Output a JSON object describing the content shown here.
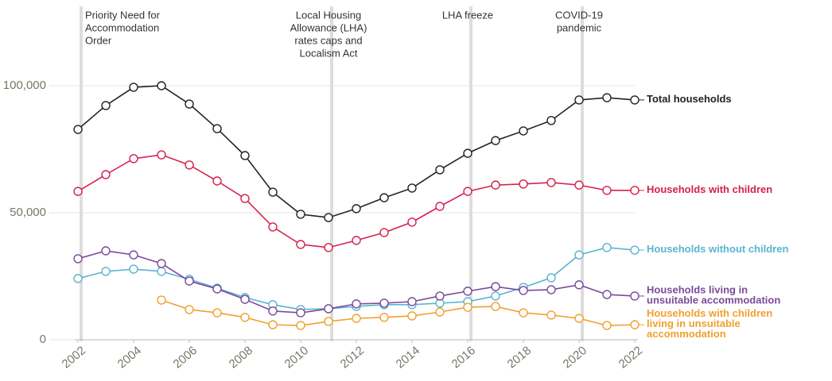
{
  "chart_data": {
    "type": "line",
    "x": [
      2002,
      2003,
      2004,
      2005,
      2006,
      2007,
      2008,
      2009,
      2010,
      2011,
      2012,
      2013,
      2014,
      2015,
      2016,
      2017,
      2018,
      2019,
      2020,
      2021,
      2022
    ],
    "xlim": [
      2002,
      2022
    ],
    "xticks": [
      2002,
      2004,
      2006,
      2008,
      2010,
      2012,
      2014,
      2016,
      2018,
      2020,
      2022
    ],
    "ylim": [
      0,
      130000
    ],
    "yticks": [
      0,
      {
        "value": 50000,
        "label": "50,000"
      },
      {
        "value": 100000,
        "label": "100,000"
      }
    ],
    "grid": true,
    "annotations": [
      {
        "x": 2002,
        "text": [
          "Priority Need for",
          "Accommodation",
          "Order"
        ]
      },
      {
        "x": 2011,
        "text": [
          "Local Housing",
          "Allowance (LHA)",
          "rates caps and",
          "Localism Act"
        ]
      },
      {
        "x": 2016,
        "text": [
          "LHA freeze"
        ]
      },
      {
        "x": 2020,
        "text": [
          "COVID-19",
          "pandemic"
        ]
      }
    ],
    "series": [
      {
        "name": "Total households",
        "color": "#222222",
        "values": [
          82800,
          92200,
          99400,
          100000,
          92800,
          83100,
          72500,
          58100,
          49400,
          48100,
          51600,
          55900,
          59700,
          66900,
          73400,
          78400,
          82200,
          86300,
          94400,
          95300,
          94400
        ]
      },
      {
        "name": "Households with children",
        "color": "#d6204e",
        "values": [
          58400,
          65000,
          71300,
          72800,
          68800,
          62500,
          55600,
          44400,
          37500,
          36300,
          39100,
          42200,
          46300,
          52500,
          58400,
          60900,
          61300,
          61900,
          60900,
          58800,
          58800
        ]
      },
      {
        "name": "Households without children",
        "color": "#5ab4d0",
        "values": [
          24100,
          26900,
          27800,
          26900,
          23800,
          20300,
          16600,
          13800,
          11900,
          12200,
          13100,
          13800,
          13800,
          14400,
          15000,
          17200,
          20600,
          24400,
          33400,
          36300,
          35300
        ]
      },
      {
        "name": "Households living in unsuitable accommodation",
        "color": "#7b4a9a",
        "values": [
          31900,
          35000,
          33400,
          30000,
          23100,
          20000,
          15900,
          11300,
          10600,
          12200,
          14100,
          14400,
          15000,
          17200,
          19100,
          20900,
          19400,
          19700,
          21600,
          17800,
          17200
        ]
      },
      {
        "name": "Households with children living in unsuitable accommodation",
        "color": "#f0a030",
        "values": [
          null,
          null,
          null,
          15600,
          11900,
          10600,
          8800,
          5900,
          5600,
          7200,
          8400,
          8800,
          9400,
          10900,
          12800,
          13100,
          10600,
          9700,
          8400,
          5600,
          5900
        ]
      }
    ]
  }
}
